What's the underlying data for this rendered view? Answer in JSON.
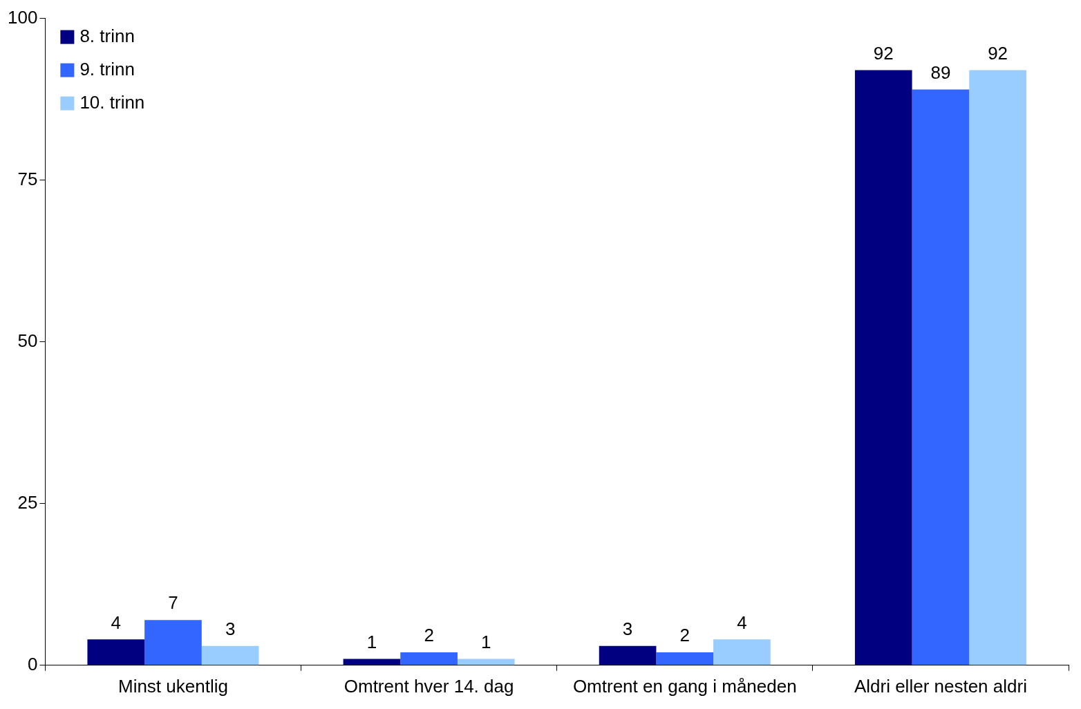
{
  "chart_data": {
    "type": "bar",
    "categories": [
      "Minst ukentlig",
      "Omtrent hver 14. dag",
      "Omtrent en gang i måneden",
      "Aldri eller nesten aldri"
    ],
    "series": [
      {
        "name": "8. trinn",
        "color": "#000080",
        "values": [
          4,
          1,
          3,
          92
        ]
      },
      {
        "name": "9. trinn",
        "color": "#3366ff",
        "values": [
          7,
          2,
          2,
          89
        ]
      },
      {
        "name": "10. trinn",
        "color": "#99ccff",
        "values": [
          3,
          1,
          4,
          92
        ]
      }
    ],
    "ylim": [
      0,
      100
    ],
    "yticks": [
      0,
      25,
      50,
      75,
      100
    ],
    "grid": false,
    "legend": "top left",
    "data_labels": true
  }
}
